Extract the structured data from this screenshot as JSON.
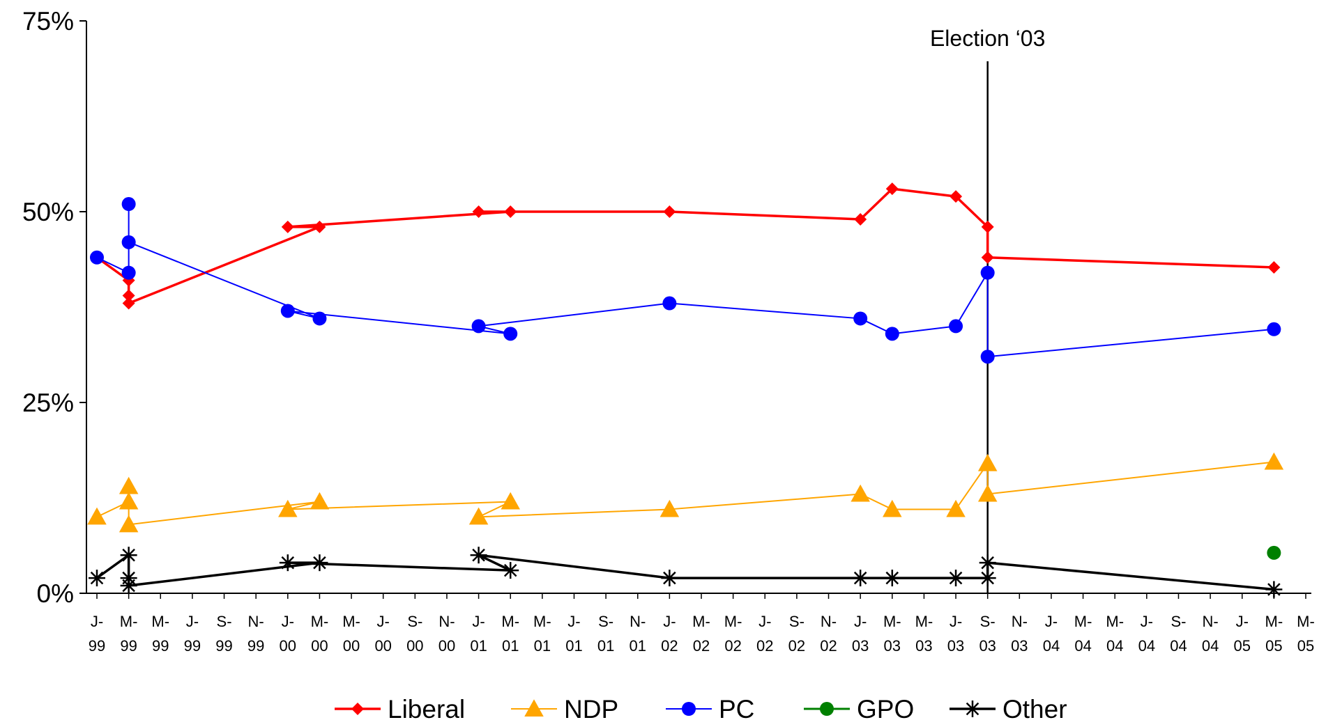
{
  "chart_data": {
    "type": "line",
    "title": "",
    "xlabel": "",
    "ylabel": "",
    "ylim": [
      0,
      75
    ],
    "y_ticks": [
      "0%",
      "25%",
      "50%",
      "75%"
    ],
    "x_tick_labels": [
      [
        "J-",
        "99"
      ],
      [
        "M-",
        "99"
      ],
      [
        "M-",
        "99"
      ],
      [
        "J-",
        "99"
      ],
      [
        "S-",
        "99"
      ],
      [
        "N-",
        "99"
      ],
      [
        "J-",
        "00"
      ],
      [
        "M-",
        "00"
      ],
      [
        "M-",
        "00"
      ],
      [
        "J-",
        "00"
      ],
      [
        "S-",
        "00"
      ],
      [
        "N-",
        "00"
      ],
      [
        "J-",
        "01"
      ],
      [
        "M-",
        "01"
      ],
      [
        "M-",
        "01"
      ],
      [
        "J-",
        "01"
      ],
      [
        "S-",
        "01"
      ],
      [
        "N-",
        "01"
      ],
      [
        "J-",
        "02"
      ],
      [
        "M-",
        "02"
      ],
      [
        "M-",
        "02"
      ],
      [
        "J-",
        "02"
      ],
      [
        "S-",
        "02"
      ],
      [
        "N-",
        "02"
      ],
      [
        "J-",
        "03"
      ],
      [
        "M-",
        "03"
      ],
      [
        "M-",
        "03"
      ],
      [
        "J-",
        "03"
      ],
      [
        "S-",
        "03"
      ],
      [
        "N-",
        "03"
      ],
      [
        "J-",
        "04"
      ],
      [
        "M-",
        "04"
      ],
      [
        "M-",
        "04"
      ],
      [
        "J-",
        "04"
      ],
      [
        "S-",
        "04"
      ],
      [
        "N-",
        "04"
      ],
      [
        "J-",
        "05"
      ],
      [
        "M-",
        "05"
      ],
      [
        "M-",
        "05"
      ]
    ],
    "annotation": {
      "label": "Election ‘03",
      "x": "S-03"
    },
    "grid": false,
    "legend_position": "bottom",
    "series": [
      {
        "name": "Liberal",
        "color": "#ff0000",
        "marker": "diamond",
        "points": [
          [
            "J-99",
            44
          ],
          [
            "M-99",
            41
          ],
          [
            "M-99",
            39
          ],
          [
            "M-99",
            38
          ],
          [
            "M-00",
            48
          ],
          [
            "J-00",
            48
          ],
          [
            "M-01",
            50
          ],
          [
            "J-01",
            50
          ],
          [
            "J-02",
            50
          ],
          [
            "J-03",
            49
          ],
          [
            "M-03",
            53
          ],
          [
            "J-03",
            52
          ],
          [
            "S-03",
            48
          ],
          [
            "S-03",
            44
          ],
          [
            "M-05",
            42.7
          ]
        ]
      },
      {
        "name": "NDP",
        "color": "#ffa500",
        "marker": "triangle",
        "points": [
          [
            "J-99",
            10
          ],
          [
            "M-99",
            12
          ],
          [
            "M-99",
            14
          ],
          [
            "M-99",
            9
          ],
          [
            "M-00",
            12
          ],
          [
            "J-00",
            11
          ],
          [
            "M-01",
            12
          ],
          [
            "J-01",
            10
          ],
          [
            "J-02",
            11
          ],
          [
            "J-03",
            13
          ],
          [
            "M-03",
            11
          ],
          [
            "J-03",
            11
          ],
          [
            "S-03",
            17
          ],
          [
            "S-03",
            13
          ],
          [
            "M-05",
            17.2
          ]
        ]
      },
      {
        "name": "PC",
        "color": "#0000ff",
        "marker": "circle",
        "points": [
          [
            "J-99",
            44
          ],
          [
            "M-99",
            42
          ],
          [
            "M-99",
            51
          ],
          [
            "M-99",
            46
          ],
          [
            "M-00",
            36
          ],
          [
            "J-00",
            37
          ],
          [
            "M-01",
            34
          ],
          [
            "J-01",
            35
          ],
          [
            "J-02",
            38
          ],
          [
            "J-03",
            36
          ],
          [
            "M-03",
            34
          ],
          [
            "J-03",
            35
          ],
          [
            "S-03",
            42
          ],
          [
            "S-03",
            31
          ],
          [
            "M-05",
            34.6
          ]
        ]
      },
      {
        "name": "GPO",
        "color": "#008000",
        "marker": "circle",
        "points": [
          [
            "M-05",
            5.3
          ]
        ]
      },
      {
        "name": "Other",
        "color": "#000000",
        "marker": "star",
        "points": [
          [
            "J-99",
            2
          ],
          [
            "M-99",
            5
          ],
          [
            "M-99",
            2
          ],
          [
            "M-99",
            1
          ],
          [
            "M-00",
            4
          ],
          [
            "J-00",
            4
          ],
          [
            "M-01",
            3
          ],
          [
            "J-01",
            5
          ],
          [
            "J-02",
            2
          ],
          [
            "J-03",
            2
          ],
          [
            "M-03",
            2
          ],
          [
            "J-03",
            2
          ],
          [
            "S-03",
            2
          ],
          [
            "S-03",
            4
          ],
          [
            "M-05",
            0.5
          ]
        ]
      }
    ]
  }
}
